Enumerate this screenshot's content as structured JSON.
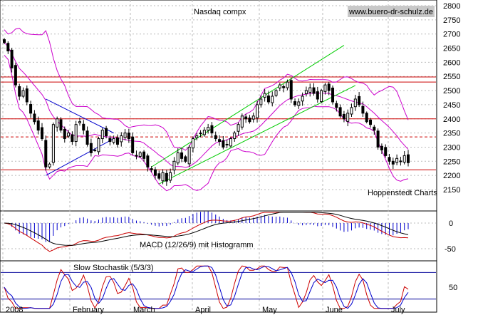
{
  "chart_data": [
    {
      "type": "candlestick",
      "title": "Nasdaq compx",
      "watermark": "www.buero-dr-schulz.de",
      "credit": "Hoppenstedt Charts",
      "y_ticks": [
        2150,
        2200,
        2250,
        2300,
        2350,
        2400,
        2450,
        2500,
        2550,
        2600,
        2650,
        2700,
        2750,
        2800
      ],
      "ylim": [
        2130,
        2800
      ],
      "x_labels": [
        "2008",
        "February",
        "March",
        "April",
        "May",
        "June",
        "July"
      ],
      "horizontal_lines": [
        {
          "value": 2548,
          "style": "solid",
          "color": "#cc0000"
        },
        {
          "value": 2530,
          "style": "solid",
          "color": "#cc0000"
        },
        {
          "value": 2400,
          "style": "solid",
          "color": "#cc0000"
        },
        {
          "value": 2336,
          "style": "dashed",
          "color": "#cc0000"
        },
        {
          "value": 2220,
          "style": "solid",
          "color": "#cc0000"
        }
      ],
      "closes": [
        2670,
        2640,
        2580,
        2520,
        2480,
        2500,
        2460,
        2420,
        2390,
        2360,
        2330,
        2230,
        2240,
        2380,
        2400,
        2360,
        2330,
        2350,
        2320,
        2380,
        2390,
        2360,
        2310,
        2280,
        2290,
        2330,
        2360,
        2340,
        2320,
        2330,
        2310,
        2340,
        2350,
        2330,
        2280,
        2270,
        2280,
        2260,
        2230,
        2220,
        2200,
        2190,
        2210,
        2180,
        2210,
        2250,
        2280,
        2260,
        2250,
        2300,
        2330,
        2340,
        2350,
        2360,
        2370,
        2350,
        2330,
        2320,
        2300,
        2310,
        2330,
        2350,
        2380,
        2410,
        2400,
        2390,
        2410,
        2450,
        2470,
        2490,
        2460,
        2480,
        2500,
        2520,
        2510,
        2530,
        2470,
        2450,
        2460,
        2480,
        2500,
        2510,
        2490,
        2470,
        2500,
        2520,
        2500,
        2460,
        2440,
        2410,
        2400,
        2420,
        2440,
        2470,
        2450,
        2420,
        2390,
        2380,
        2360,
        2300,
        2290,
        2270,
        2250,
        2240,
        2260,
        2250,
        2270,
        2245
      ],
      "channel_lines": [
        {
          "name": "",
          "points": [
            [
              0.0,
              0
            ],
            [
              0.0,
              0
            ]
          ]
        }
      ]
    },
    {
      "type": "line",
      "title": "MACD (12/26/9) mit Histogramm",
      "y_ticks": [
        0,
        -50
      ],
      "ylim": [
        -80,
        40
      ]
    },
    {
      "type": "line",
      "title": "Slow Stochastik (5/3/3)",
      "y_ticks": [
        50
      ],
      "ylim": [
        0,
        100
      ],
      "levels": [
        80,
        20
      ]
    }
  ]
}
